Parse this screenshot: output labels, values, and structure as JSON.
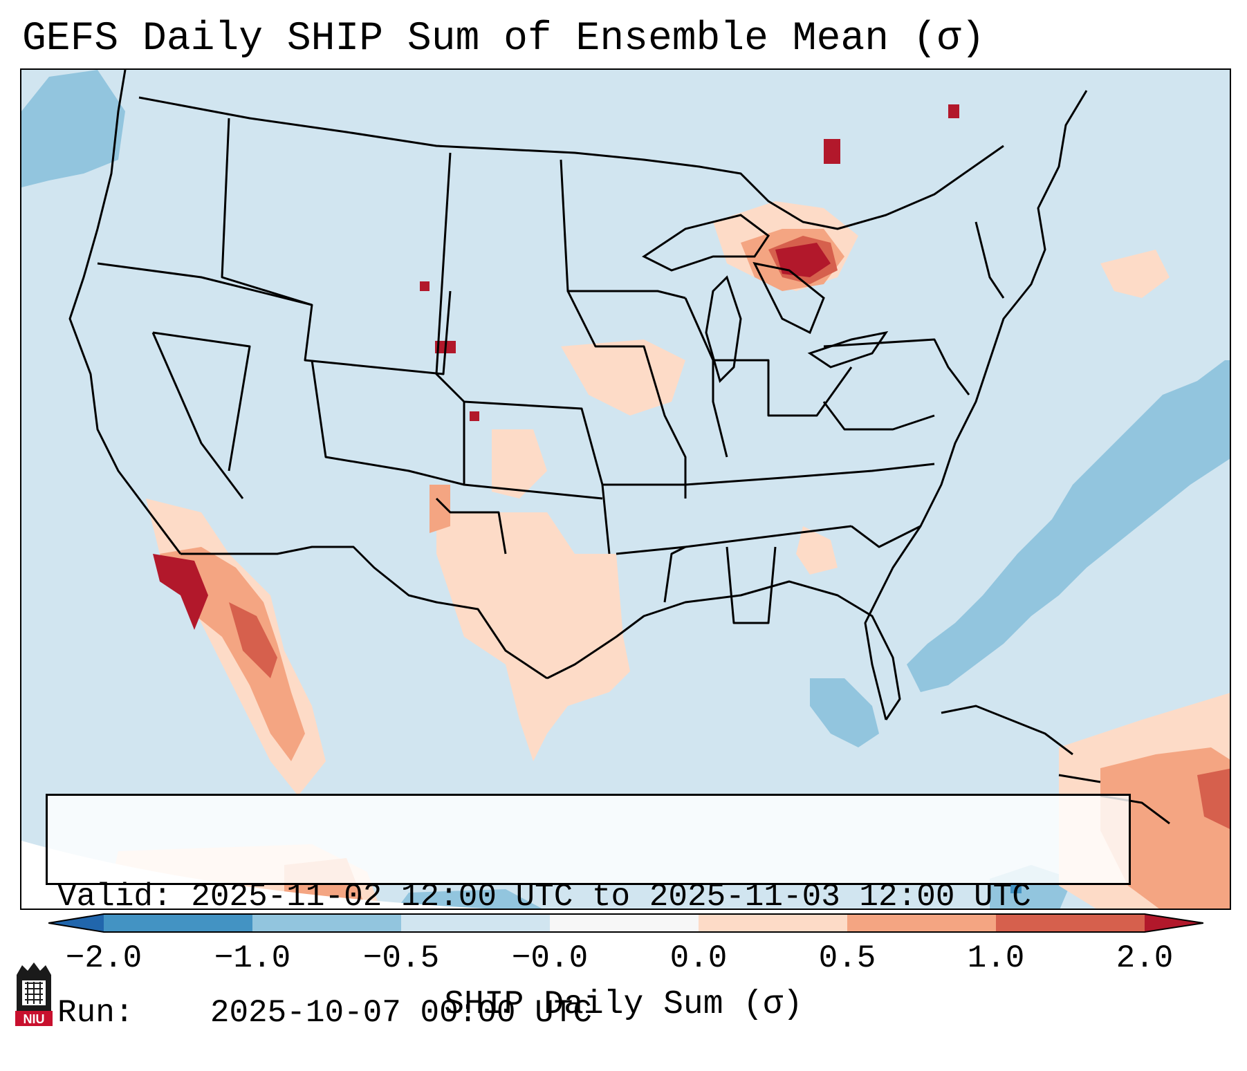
{
  "title": "GEFS Daily SHIP Sum of Ensemble Mean (σ)",
  "info": {
    "valid_label": "Valid:",
    "valid_value": "2025-11-02 12:00 UTC to 2025-11-03 12:00 UTC",
    "run_label": "Run:",
    "run_value": "2025-10-07 00:00 UTC"
  },
  "colorbar": {
    "label": "SHIP Daily Sum (σ)",
    "ticks": [
      "−2.0",
      "−1.0",
      "−0.5",
      "−0.0",
      "0.0",
      "0.5",
      "1.0",
      "2.0"
    ],
    "bin_colors": [
      "#4393c3",
      "#92c5de",
      "#d1e5f0",
      "#f7f7f7",
      "#fddbc7",
      "#f4a582",
      "#d6604d"
    ],
    "under_color": "#2166ac",
    "over_color": "#b2182b"
  },
  "map": {
    "background_color": "#d1e5f0",
    "outside_domain_color": "#ffffff",
    "line_color": "#000000"
  },
  "logo": {
    "text": "NIU",
    "color": "#c8102e"
  }
}
